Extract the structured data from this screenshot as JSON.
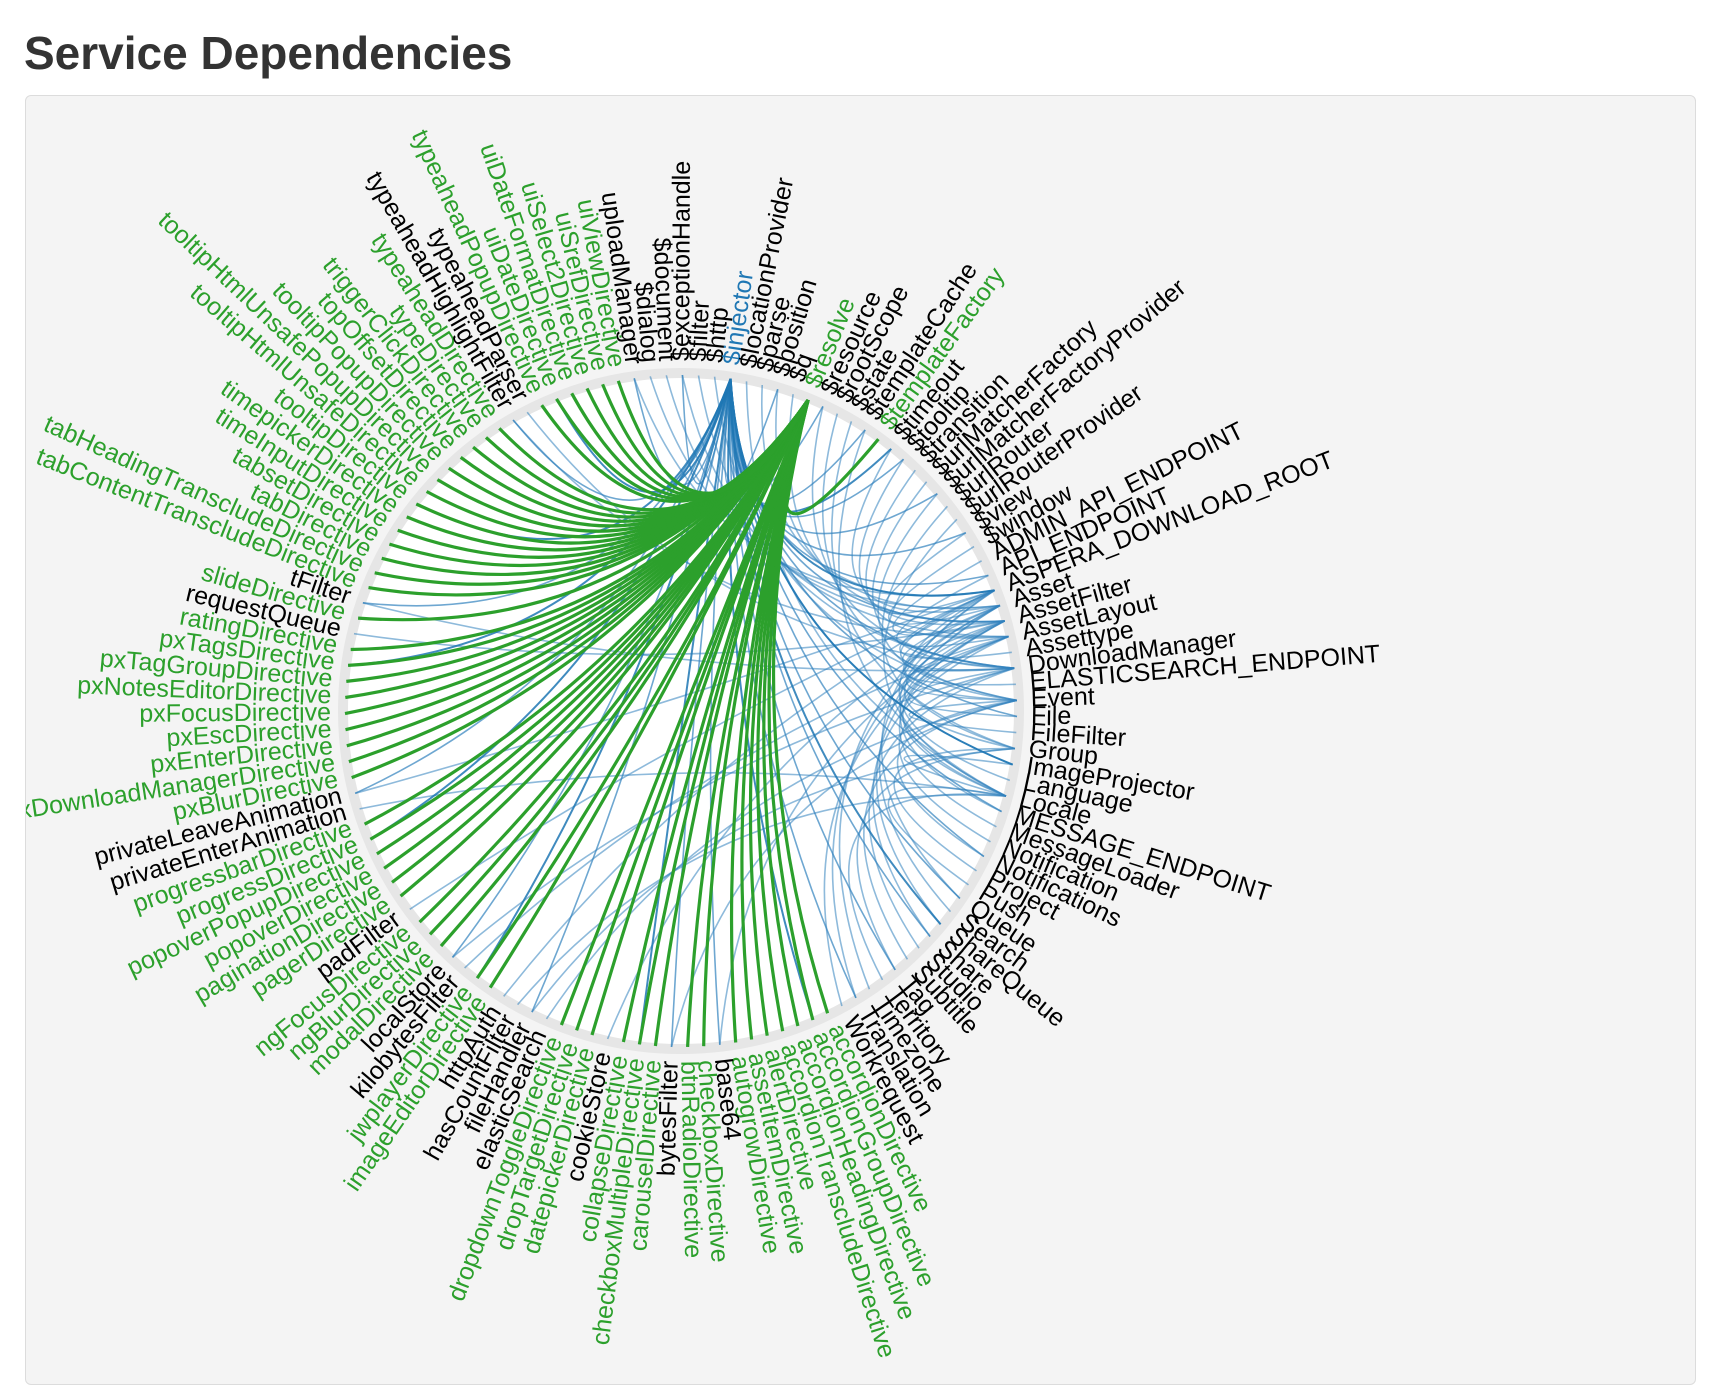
{
  "page": {
    "title": "Service Dependencies"
  },
  "legend_colors": {
    "directive": "#2ca02c",
    "service": "#000000",
    "highlight": "#1f77b4",
    "service_link": "#3182bd",
    "directive_link": "#2ca02c"
  },
  "nodes": [
    {
      "name": "uploadManager",
      "kind": "service"
    },
    {
      "name": "$dialog",
      "kind": "service"
    },
    {
      "name": "$document",
      "kind": "service"
    },
    {
      "name": "$exceptionHandle",
      "kind": "service"
    },
    {
      "name": "$filter",
      "kind": "service"
    },
    {
      "name": "$http",
      "kind": "service"
    },
    {
      "name": "$injector",
      "kind": "highlight"
    },
    {
      "name": "$locationProvider",
      "kind": "service"
    },
    {
      "name": "$parse",
      "kind": "service"
    },
    {
      "name": "$position",
      "kind": "service"
    },
    {
      "name": "$q",
      "kind": "service"
    },
    {
      "name": "$resolve",
      "kind": "directive"
    },
    {
      "name": "$resource",
      "kind": "service"
    },
    {
      "name": "$rootScope",
      "kind": "service"
    },
    {
      "name": "$state",
      "kind": "service"
    },
    {
      "name": "$templateCache",
      "kind": "service"
    },
    {
      "name": "$templateFactory",
      "kind": "directive"
    },
    {
      "name": "$timeout",
      "kind": "service"
    },
    {
      "name": "$tooltip",
      "kind": "service"
    },
    {
      "name": "$transition",
      "kind": "service"
    },
    {
      "name": "$urlMatcherFactory",
      "kind": "service"
    },
    {
      "name": "$urlMatcherFactoryProvider",
      "kind": "service"
    },
    {
      "name": "$urlRouter",
      "kind": "service"
    },
    {
      "name": "$urlRouterProvider",
      "kind": "service"
    },
    {
      "name": "$view",
      "kind": "service"
    },
    {
      "name": "$window",
      "kind": "service"
    },
    {
      "name": "ADMIN_API_ENDPOINT",
      "kind": "service"
    },
    {
      "name": "API_ENDPOINT",
      "kind": "service"
    },
    {
      "name": "ASPERA_DOWNLOAD_ROOT",
      "kind": "service"
    },
    {
      "name": "Asset",
      "kind": "service"
    },
    {
      "name": "AssetFilter",
      "kind": "service"
    },
    {
      "name": "AssetLayout",
      "kind": "service"
    },
    {
      "name": "Assettype",
      "kind": "service"
    },
    {
      "name": "DownloadManager",
      "kind": "service"
    },
    {
      "name": "ELASTICSEARCH_ENDPOINT",
      "kind": "service"
    },
    {
      "name": "Event",
      "kind": "service"
    },
    {
      "name": "File",
      "kind": "service"
    },
    {
      "name": "FileFilter",
      "kind": "service"
    },
    {
      "name": "Group",
      "kind": "service"
    },
    {
      "name": "ImageProjector",
      "kind": "service"
    },
    {
      "name": "Language",
      "kind": "service"
    },
    {
      "name": "Locale",
      "kind": "service"
    },
    {
      "name": "MESSAGE_ENDPOINT",
      "kind": "service"
    },
    {
      "name": "MessageLoader",
      "kind": "service"
    },
    {
      "name": "Notification",
      "kind": "service"
    },
    {
      "name": "Notifications",
      "kind": "service"
    },
    {
      "name": "Project",
      "kind": "service"
    },
    {
      "name": "Push",
      "kind": "service"
    },
    {
      "name": "Queue",
      "kind": "service"
    },
    {
      "name": "Search",
      "kind": "service"
    },
    {
      "name": "ShareQueue",
      "kind": "service"
    },
    {
      "name": "Share",
      "kind": "service"
    },
    {
      "name": "Studio",
      "kind": "service"
    },
    {
      "name": "Subtitle",
      "kind": "service"
    },
    {
      "name": "Tag",
      "kind": "service"
    },
    {
      "name": "Territory",
      "kind": "service"
    },
    {
      "name": "Timezone",
      "kind": "service"
    },
    {
      "name": "Translation",
      "kind": "service"
    },
    {
      "name": "Workrequest",
      "kind": "service"
    },
    {
      "name": "accordionDirective",
      "kind": "directive"
    },
    {
      "name": "accordionGroupDirective",
      "kind": "directive"
    },
    {
      "name": "accordionHeadingDirective",
      "kind": "directive"
    },
    {
      "name": "accordionTranscludeDirective",
      "kind": "directive"
    },
    {
      "name": "alertDirective",
      "kind": "directive"
    },
    {
      "name": "assetItemDirective",
      "kind": "directive"
    },
    {
      "name": "autogrowDirective",
      "kind": "directive"
    },
    {
      "name": "base64",
      "kind": "service"
    },
    {
      "name": "checkboxDirective",
      "kind": "directive"
    },
    {
      "name": "btnRadioDirective",
      "kind": "directive"
    },
    {
      "name": "bytesFilter",
      "kind": "service"
    },
    {
      "name": "carouselDirective",
      "kind": "directive"
    },
    {
      "name": "checkboxMultipleDirective",
      "kind": "directive"
    },
    {
      "name": "collapseDirective",
      "kind": "directive"
    },
    {
      "name": "cookieStore",
      "kind": "service"
    },
    {
      "name": "datepickerDirective",
      "kind": "directive"
    },
    {
      "name": "dropTargetDirective",
      "kind": "directive"
    },
    {
      "name": "dropdownToggleDirective",
      "kind": "directive"
    },
    {
      "name": "elasticSearch",
      "kind": "service"
    },
    {
      "name": "fileHandler",
      "kind": "service"
    },
    {
      "name": "hasCountFilter",
      "kind": "service"
    },
    {
      "name": "httpAuth",
      "kind": "service"
    },
    {
      "name": "imageEditorDirective",
      "kind": "directive"
    },
    {
      "name": "jwplayerDirective",
      "kind": "directive"
    },
    {
      "name": "kilobytesFilter",
      "kind": "service"
    },
    {
      "name": "localStore",
      "kind": "service"
    },
    {
      "name": "modalDirective",
      "kind": "directive"
    },
    {
      "name": "ngBlurDirective",
      "kind": "directive"
    },
    {
      "name": "ngFocusDirective",
      "kind": "directive"
    },
    {
      "name": "padFilter",
      "kind": "service"
    },
    {
      "name": "pagerDirective",
      "kind": "directive"
    },
    {
      "name": "paginationDirective",
      "kind": "directive"
    },
    {
      "name": "popoverDirective",
      "kind": "directive"
    },
    {
      "name": "popoverPopupDirective",
      "kind": "directive"
    },
    {
      "name": "progressDirective",
      "kind": "directive"
    },
    {
      "name": "progressbarDirective",
      "kind": "directive"
    },
    {
      "name": "privateEnterAnimation",
      "kind": "service"
    },
    {
      "name": "privateLeaveAnimation",
      "kind": "service"
    },
    {
      "name": "pxBlurDirective",
      "kind": "directive"
    },
    {
      "name": "pxDownloadManagerDirective",
      "kind": "directive"
    },
    {
      "name": "pxEnterDirective",
      "kind": "directive"
    },
    {
      "name": "pxEscDirective",
      "kind": "directive"
    },
    {
      "name": "pxFocusDirective",
      "kind": "directive"
    },
    {
      "name": "pxNotesEditorDirective",
      "kind": "directive"
    },
    {
      "name": "pxTagGroupDirective",
      "kind": "directive"
    },
    {
      "name": "pxTagsDirective",
      "kind": "directive"
    },
    {
      "name": "ratingDirective",
      "kind": "directive"
    },
    {
      "name": "requestQueue",
      "kind": "service"
    },
    {
      "name": "slideDirective",
      "kind": "directive"
    },
    {
      "name": "tFilter",
      "kind": "service"
    },
    {
      "name": "tabContentTranscludeDirective",
      "kind": "directive"
    },
    {
      "name": "tabHeadingTranscludeDirective",
      "kind": "directive"
    },
    {
      "name": "tabDirective",
      "kind": "directive"
    },
    {
      "name": "tabsetDirective",
      "kind": "directive"
    },
    {
      "name": "timeInputDirective",
      "kind": "directive"
    },
    {
      "name": "timepickerDirective",
      "kind": "directive"
    },
    {
      "name": "tooltipDirective",
      "kind": "directive"
    },
    {
      "name": "tooltipHtmlUnsafeDirective",
      "kind": "directive"
    },
    {
      "name": "tooltipHtmlUnsafePopupDirective",
      "kind": "directive"
    },
    {
      "name": "tooltipPopupDirective",
      "kind": "directive"
    },
    {
      "name": "topOffsetDirective",
      "kind": "directive"
    },
    {
      "name": "triggerClickDirective",
      "kind": "directive"
    },
    {
      "name": "typeDirective",
      "kind": "directive"
    },
    {
      "name": "typeaheadDirective",
      "kind": "directive"
    },
    {
      "name": "typeaheadHighlightFilter",
      "kind": "service"
    },
    {
      "name": "typeaheadParser",
      "kind": "service"
    },
    {
      "name": "typeaheadPopupDirective",
      "kind": "directive"
    },
    {
      "name": "uiDateDirective",
      "kind": "directive"
    },
    {
      "name": "uiDateFormatDirective",
      "kind": "directive"
    },
    {
      "name": "uiSelect2Directive",
      "kind": "directive"
    },
    {
      "name": "uiSrefDirective",
      "kind": "directive"
    },
    {
      "name": "uiViewDirective",
      "kind": "directive"
    }
  ],
  "link_groups": {
    "injector_target": "$injector",
    "directive_hub": "$resolve",
    "service_cluster": [
      "ASPERA_DOWNLOAD_ROOT",
      "Asset",
      "AssetFilter",
      "AssetLayout",
      "DownloadManager",
      "Event",
      "Group",
      "Locale"
    ]
  }
}
